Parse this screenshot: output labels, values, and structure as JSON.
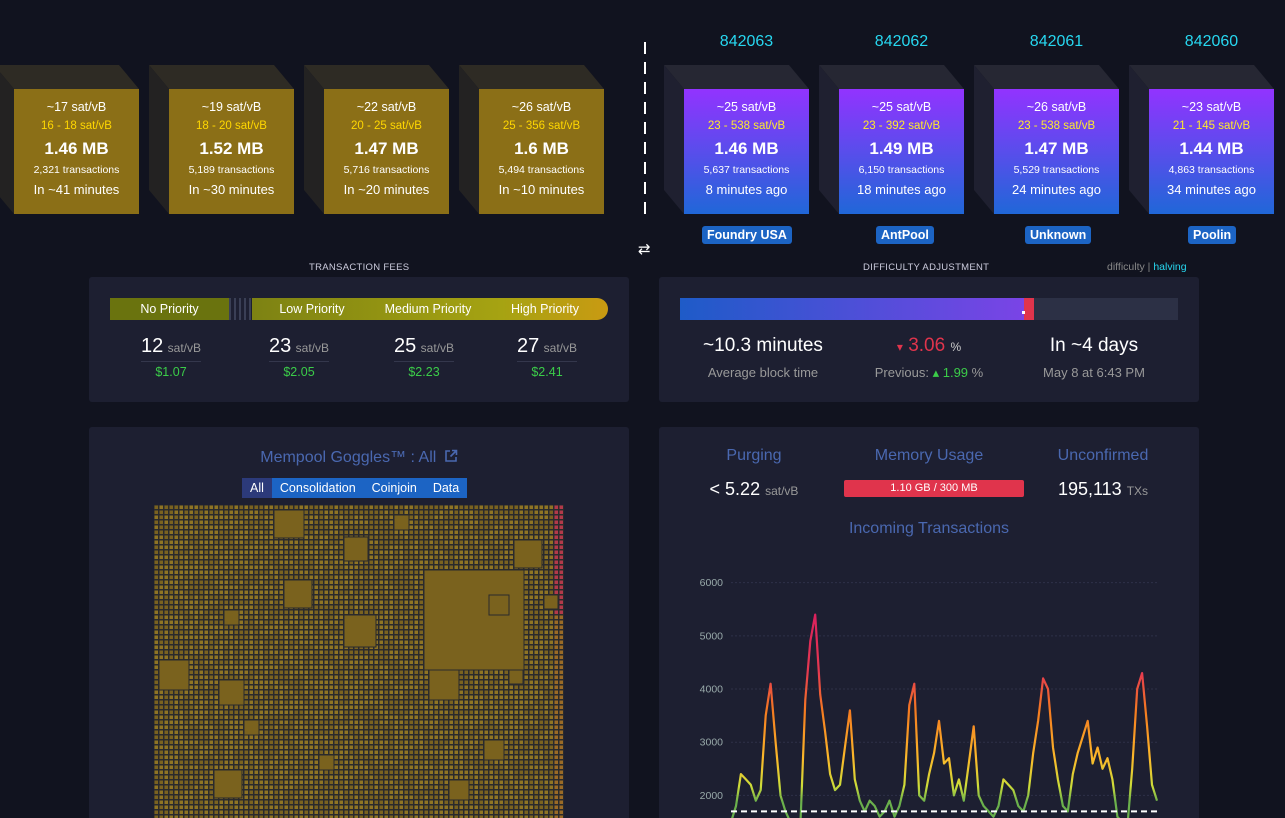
{
  "mempool_blocks": [
    {
      "fee": "~17 sat/vB",
      "range": "16 - 18 sat/vB",
      "size": "1.46 MB",
      "txs": "2,321 transactions",
      "eta": "In ~41 minutes"
    },
    {
      "fee": "~19 sat/vB",
      "range": "18 - 20 sat/vB",
      "size": "1.52 MB",
      "txs": "5,189 transactions",
      "eta": "In ~30 minutes"
    },
    {
      "fee": "~22 sat/vB",
      "range": "20 - 25 sat/vB",
      "size": "1.47 MB",
      "txs": "5,716 transactions",
      "eta": "In ~20 minutes"
    },
    {
      "fee": "~26 sat/vB",
      "range": "25 - 356 sat/vB",
      "size": "1.6 MB",
      "txs": "5,494 transactions",
      "eta": "In ~10 minutes"
    }
  ],
  "mined_blocks": [
    {
      "height": "842063",
      "fee": "~25 sat/vB",
      "range": "23 - 538 sat/vB",
      "size": "1.46 MB",
      "txs": "5,637 transactions",
      "age": "8 minutes ago",
      "pool": "Foundry USA"
    },
    {
      "height": "842062",
      "fee": "~25 sat/vB",
      "range": "23 - 392 sat/vB",
      "size": "1.49 MB",
      "txs": "6,150 transactions",
      "age": "18 minutes ago",
      "pool": "AntPool"
    },
    {
      "height": "842061",
      "fee": "~26 sat/vB",
      "range": "23 - 538 sat/vB",
      "size": "1.47 MB",
      "txs": "5,529 transactions",
      "age": "24 minutes ago",
      "pool": "Unknown"
    },
    {
      "height": "842060",
      "fee": "~23 sat/vB",
      "range": "21 - 145 sat/vB",
      "size": "1.44 MB",
      "txs": "4,863 transactions",
      "age": "34 minutes ago",
      "pool": "Poolin"
    }
  ],
  "swap_icon": "⇄",
  "fees": {
    "title": "TRANSACTION FEES",
    "labels": [
      "No Priority",
      "Low Priority",
      "Medium Priority",
      "High Priority"
    ],
    "rates": [
      "12",
      "23",
      "25",
      "27"
    ],
    "unit": "sat/vB",
    "usd": [
      "$1.07",
      "$2.05",
      "$2.23",
      "$2.41"
    ]
  },
  "difficulty": {
    "title": "DIFFICULTY ADJUSTMENT",
    "link_difficulty": "difficulty",
    "link_sep": "|",
    "link_halving": "halving",
    "progress_pct": 69,
    "avg_time": "~10.3 minutes",
    "avg_label": "Average block time",
    "change_arrow": "▾",
    "change": "3.06",
    "change_unit": "%",
    "prev_label": "Previous:",
    "prev_arrow": "▴",
    "prev": "1.99",
    "prev_unit": "%",
    "eta": "In ~4 days",
    "eta_date": "May 8 at 6:43 PM"
  },
  "goggles": {
    "title": "Mempool Goggles™ : All",
    "external_icon": "external-link-icon",
    "tabs": [
      "All",
      "Consolidation",
      "Coinjoin",
      "Data"
    ]
  },
  "stats": {
    "purging_label": "Purging",
    "purging_value": "< 5.22",
    "purging_unit": "sat/vB",
    "memory_label": "Memory Usage",
    "memory_value": "1.10 GB / 300 MB",
    "unconfirmed_label": "Unconfirmed",
    "unconfirmed_value": "195,113",
    "unconfirmed_unit": "TXs",
    "incoming_title": "Incoming Transactions"
  },
  "chart_data": {
    "type": "line",
    "title": "Incoming Transactions",
    "yticks": [
      2000,
      3000,
      4000,
      5000,
      6000
    ],
    "ylim": [
      1500,
      6200
    ],
    "reference_line": 1700,
    "values": [
      1500,
      1800,
      2400,
      2300,
      2200,
      1900,
      2100,
      3500,
      4100,
      3000,
      2000,
      1700,
      1500,
      1300,
      1400,
      3800,
      4900,
      5400,
      3900,
      3200,
      2400,
      2100,
      2200,
      2900,
      3600,
      2300,
      1900,
      1700,
      1900,
      1800,
      1600,
      1700,
      1900,
      1600,
      1800,
      2200,
      3700,
      4100,
      2000,
      1900,
      2400,
      2800,
      3400,
      2600,
      2700,
      2000,
      2300,
      1900,
      2600,
      3300,
      2000,
      1800,
      1700,
      1600,
      1800,
      2300,
      2200,
      2100,
      1800,
      1700,
      2000,
      2800,
      3400,
      4200,
      4000,
      2900,
      2300,
      1800,
      1700,
      2400,
      2800,
      3100,
      3400,
      2600,
      2900,
      2500,
      2700,
      2300,
      1600,
      1500,
      1400,
      2500,
      4000,
      4300,
      3300,
      2200,
      1900
    ]
  }
}
